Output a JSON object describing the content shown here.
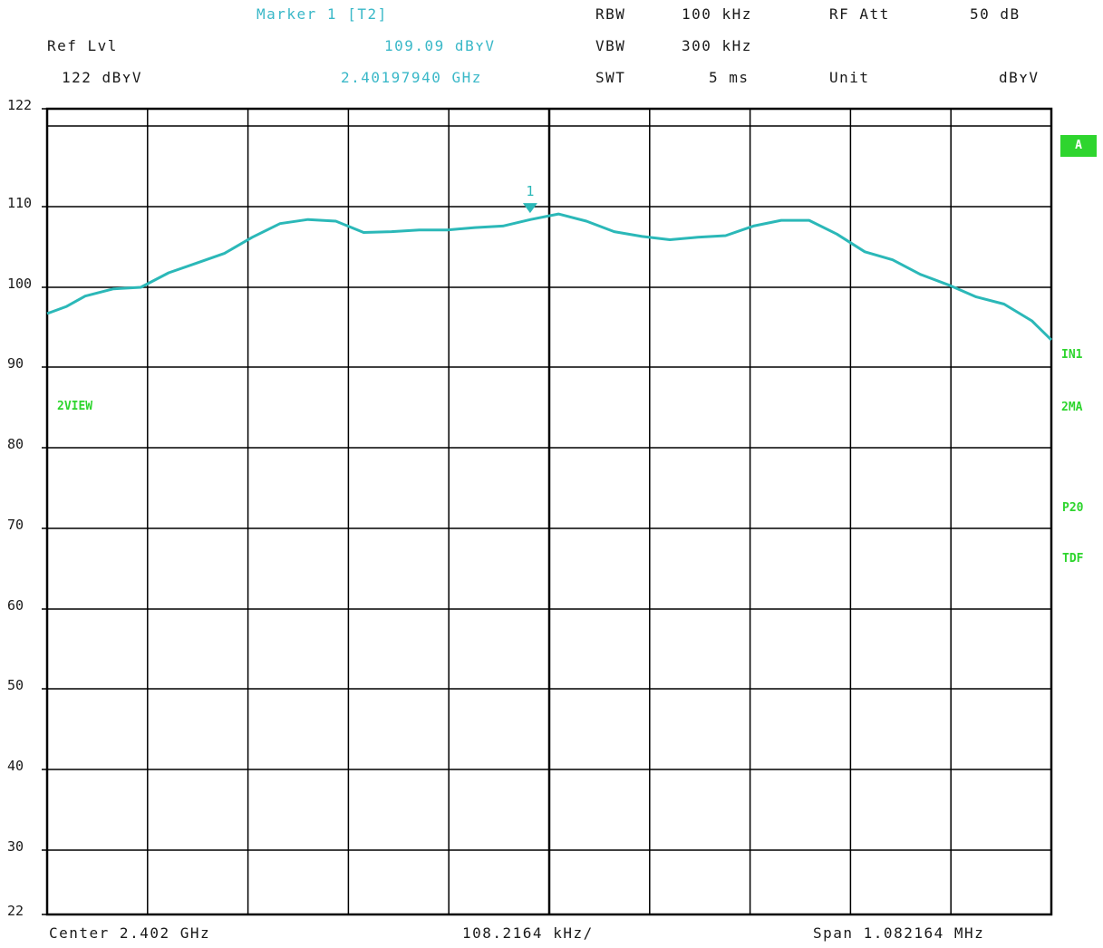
{
  "header": {
    "marker_title": "Marker 1 [T2]",
    "marker_level": "109.09 dBʏV",
    "marker_freq": "2.40197940 GHz",
    "ref_lvl_label": "Ref Lvl",
    "ref_lvl_value": "122 dBʏV",
    "rbw_label": "RBW",
    "rbw_value": "100 kHz",
    "vbw_label": "VBW",
    "vbw_value": "300 kHz",
    "swt_label": "SWT",
    "swt_value": "5 ms",
    "rfatt_label": "RF Att",
    "rfatt_value": "50 dB",
    "unit_label": "Unit",
    "unit_value": "dBʏV"
  },
  "side_labels": {
    "trace_a": "A",
    "view": "2VIEW",
    "in1": "IN1",
    "ma": "2MA",
    "p2": "P20",
    "tdf": "TDF"
  },
  "footer": {
    "center": "Center 2.402 GHz",
    "per_div": "108.2164 kHz/",
    "span": "Span 1.082164 MHz"
  },
  "colors": {
    "trace": "#2bb8b8",
    "marker": "#2bb8b8",
    "grid": "#000000",
    "annotation": "#2ed52e",
    "cyan_text": "#3ab8c8"
  },
  "chart_data": {
    "type": "line",
    "xlabel": "",
    "ylabel": "",
    "x_unit": "GHz",
    "xlim": [
      2.401459,
      2.402541
    ],
    "ylim": [
      22,
      122
    ],
    "y_ticks": [
      122,
      110,
      100,
      90,
      80,
      70,
      60,
      50,
      40,
      30,
      22
    ],
    "x_divisions": 10,
    "grid": true,
    "series": [
      {
        "x": [
          2.401459,
          2.40148,
          2.4015,
          2.40153,
          2.40156,
          2.40159,
          2.40162,
          2.40165,
          2.40168,
          2.40171,
          2.40174,
          2.40177,
          2.4018,
          2.40183,
          2.40186,
          2.40189,
          2.40192,
          2.40195,
          2.40198,
          2.40201,
          2.40204,
          2.40207,
          2.4021,
          2.40213,
          2.40216,
          2.40219,
          2.40222,
          2.40225,
          2.40228,
          2.40231,
          2.40234,
          2.40237,
          2.4024,
          2.40243,
          2.40246,
          2.40249,
          2.40252,
          2.402541
        ],
        "values": [
          96.7,
          97.6,
          98.9,
          99.8,
          100.0,
          101.8,
          103.0,
          104.2,
          106.2,
          107.9,
          108.4,
          108.2,
          106.8,
          106.9,
          107.1,
          107.1,
          107.4,
          107.6,
          108.4,
          109.09,
          108.2,
          106.9,
          106.3,
          105.9,
          106.2,
          106.4,
          107.6,
          108.3,
          108.3,
          106.6,
          104.4,
          103.4,
          101.6,
          100.3,
          98.8,
          97.9,
          95.8,
          93.4
        ]
      }
    ],
    "markers": [
      {
        "label": "1",
        "x": 2.4019794,
        "y": 109.09
      }
    ]
  }
}
